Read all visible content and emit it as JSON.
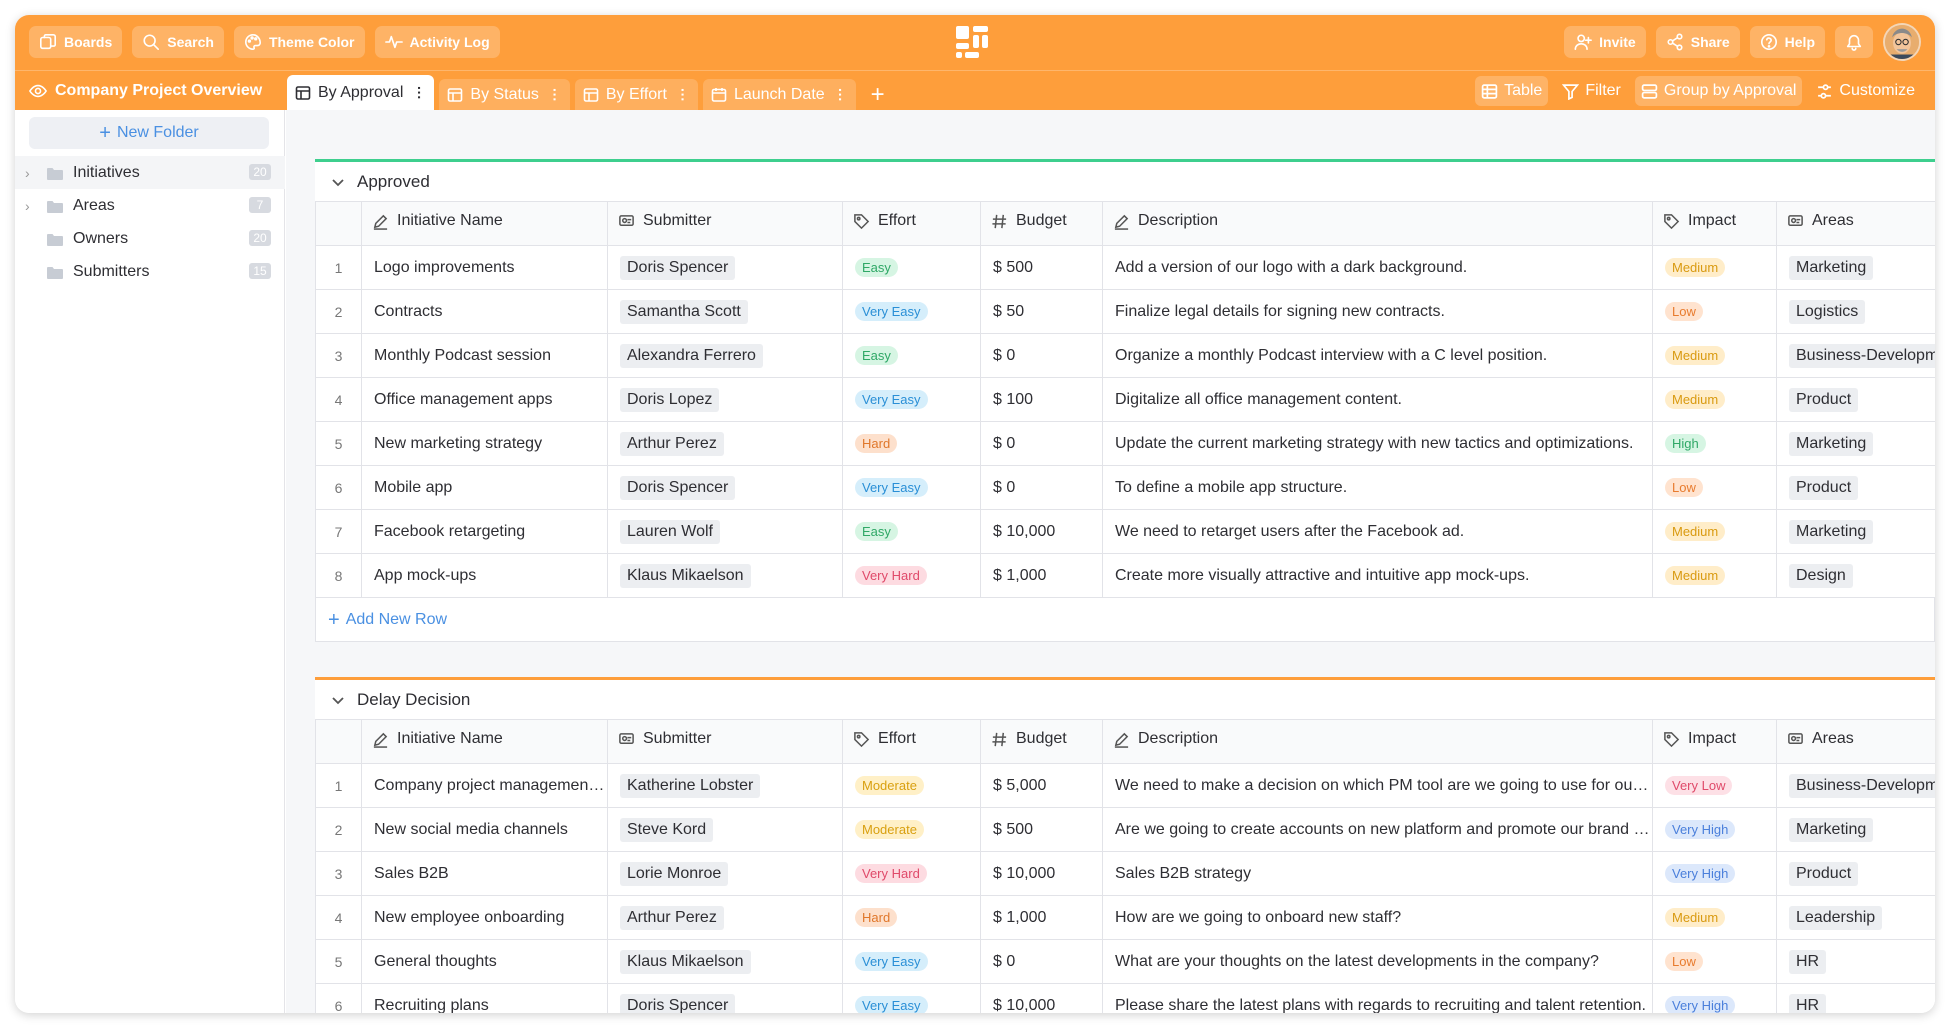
{
  "topbar": {
    "left_buttons": [
      {
        "label": "Boards",
        "icon": "boards-icon"
      },
      {
        "label": "Search",
        "icon": "search-icon"
      },
      {
        "label": "Theme Color",
        "icon": "palette-icon"
      },
      {
        "label": "Activity Log",
        "icon": "pulse-icon"
      }
    ],
    "right_buttons": [
      {
        "label": "Invite",
        "icon": "user-plus-icon"
      },
      {
        "label": "Share",
        "icon": "share-icon"
      },
      {
        "label": "Help",
        "icon": "help-icon"
      }
    ]
  },
  "subbar": {
    "project_title": "Company Project Overview",
    "tabs": [
      {
        "label": "By Approval",
        "active": true
      },
      {
        "label": "By Status",
        "active": false
      },
      {
        "label": "By Effort",
        "active": false
      },
      {
        "label": "Launch Date",
        "active": false
      }
    ],
    "right": {
      "table_label": "Table",
      "filter_label": "Filter",
      "group_label": "Group by Approval",
      "customize_label": "Customize"
    }
  },
  "sidebar": {
    "new_folder_label": "New Folder",
    "items": [
      {
        "label": "Initiatives",
        "count": "20",
        "expandable": true
      },
      {
        "label": "Areas",
        "count": "7",
        "expandable": true
      },
      {
        "label": "Owners",
        "count": "20",
        "expandable": false
      },
      {
        "label": "Submitters",
        "count": "15",
        "expandable": false
      }
    ]
  },
  "columns": {
    "name": "Initiative Name",
    "submitter": "Submitter",
    "effort": "Effort",
    "budget": "Budget",
    "description": "Description",
    "impact": "Impact",
    "areas": "Areas"
  },
  "tag_colors": {
    "Easy": {
      "bg": "#d6f5e3",
      "fg": "#2fa866"
    },
    "Very Easy": {
      "bg": "#d5eefb",
      "fg": "#2a8fd6"
    },
    "Hard": {
      "bg": "#fde0cc",
      "fg": "#e0772b"
    },
    "Very Hard": {
      "bg": "#fddbe1",
      "fg": "#e04a6a"
    },
    "Moderate": {
      "bg": "#fff0c7",
      "fg": "#d9a010"
    },
    "Medium": {
      "bg": "#ffedc9",
      "fg": "#d99a10"
    },
    "Low": {
      "bg": "#ffe3cf",
      "fg": "#e87b2e"
    },
    "High": {
      "bg": "#d6f5e3",
      "fg": "#2fa866"
    },
    "Very Low": {
      "bg": "#fde0e6",
      "fg": "#e04a6a"
    },
    "Very High": {
      "bg": "#dce8fb",
      "fg": "#4a7fdb"
    }
  },
  "add_row_label": "Add New Row",
  "groups": [
    {
      "title": "Approved",
      "color": "#3ecf8e",
      "rows": [
        {
          "num": "1",
          "name": "Logo improvements",
          "submitter": "Doris Spencer",
          "effort": "Easy",
          "budget": "$ 500",
          "description": "Add a version of our logo with a dark background.",
          "impact": "Medium",
          "area": "Marketing"
        },
        {
          "num": "2",
          "name": "Contracts",
          "submitter": "Samantha Scott",
          "effort": "Very Easy",
          "budget": "$ 50",
          "description": "Finalize legal details for signing new contracts.",
          "impact": "Low",
          "area": "Logistics"
        },
        {
          "num": "3",
          "name": "Monthly Podcast session",
          "submitter": "Alexandra Ferrero",
          "effort": "Easy",
          "budget": "$ 0",
          "description": "Organize a monthly Podcast interview with a C level position.",
          "impact": "Medium",
          "area": "Business-Development"
        },
        {
          "num": "4",
          "name": "Office management apps",
          "submitter": "Doris Lopez",
          "effort": "Very Easy",
          "budget": "$ 100",
          "description": "Digitalize all office management content.",
          "impact": "Medium",
          "area": "Product"
        },
        {
          "num": "5",
          "name": "New marketing strategy",
          "submitter": "Arthur Perez",
          "effort": "Hard",
          "budget": "$ 0",
          "description": "Update the current marketing strategy with new tactics and optimizations.",
          "impact": "High",
          "area": "Marketing"
        },
        {
          "num": "6",
          "name": "Mobile app",
          "submitter": "Doris Spencer",
          "effort": "Very Easy",
          "budget": "$ 0",
          "description": "To define a mobile app structure.",
          "impact": "Low",
          "area": "Product"
        },
        {
          "num": "7",
          "name": "Facebook retargeting",
          "submitter": "Lauren Wolf",
          "effort": "Easy",
          "budget": "$ 10,000",
          "description": "We need to retarget users after the Facebook ad.",
          "impact": "Medium",
          "area": "Marketing"
        },
        {
          "num": "8",
          "name": "App mock-ups",
          "submitter": "Klaus Mikaelson",
          "effort": "Very Hard",
          "budget": "$ 1,000",
          "description": "Create more visually attractive and intuitive app mock-ups.",
          "impact": "Medium",
          "area": "Design"
        }
      ]
    },
    {
      "title": "Delay Decision",
      "color": "#fe9e3b",
      "rows": [
        {
          "num": "1",
          "name": "Company project management tool",
          "submitter": "Katherine Lobster",
          "effort": "Moderate",
          "budget": "$ 5,000",
          "description": "We need to make a decision on which PM tool are we going to use for our projects.",
          "impact": "Very Low",
          "area": "Business-Development"
        },
        {
          "num": "2",
          "name": "New social media channels",
          "submitter": "Steve Kord",
          "effort": "Moderate",
          "budget": "$ 500",
          "description": "Are we going to create accounts on new platform and promote our brand there?",
          "impact": "Very High",
          "area": "Marketing"
        },
        {
          "num": "3",
          "name": "Sales B2B",
          "submitter": "Lorie Monroe",
          "effort": "Very Hard",
          "budget": "$ 10,000",
          "description": "Sales B2B strategy",
          "impact": "Very High",
          "area": "Product"
        },
        {
          "num": "4",
          "name": "New employee onboarding",
          "submitter": "Arthur Perez",
          "effort": "Hard",
          "budget": "$ 1,000",
          "description": "How are we going to onboard new staff?",
          "impact": "Medium",
          "area": "Leadership"
        },
        {
          "num": "5",
          "name": "General thoughts",
          "submitter": "Klaus Mikaelson",
          "effort": "Very Easy",
          "budget": "$ 0",
          "description": "What are your thoughts on the latest developments in the company?",
          "impact": "Low",
          "area": "HR"
        },
        {
          "num": "6",
          "name": "Recruiting plans",
          "submitter": "Doris Spencer",
          "effort": "Very Easy",
          "budget": "$ 10,000",
          "description": "Please share the latest plans with regards to recruiting and talent retention.",
          "impact": "Very High",
          "area": "HR"
        }
      ]
    }
  ]
}
